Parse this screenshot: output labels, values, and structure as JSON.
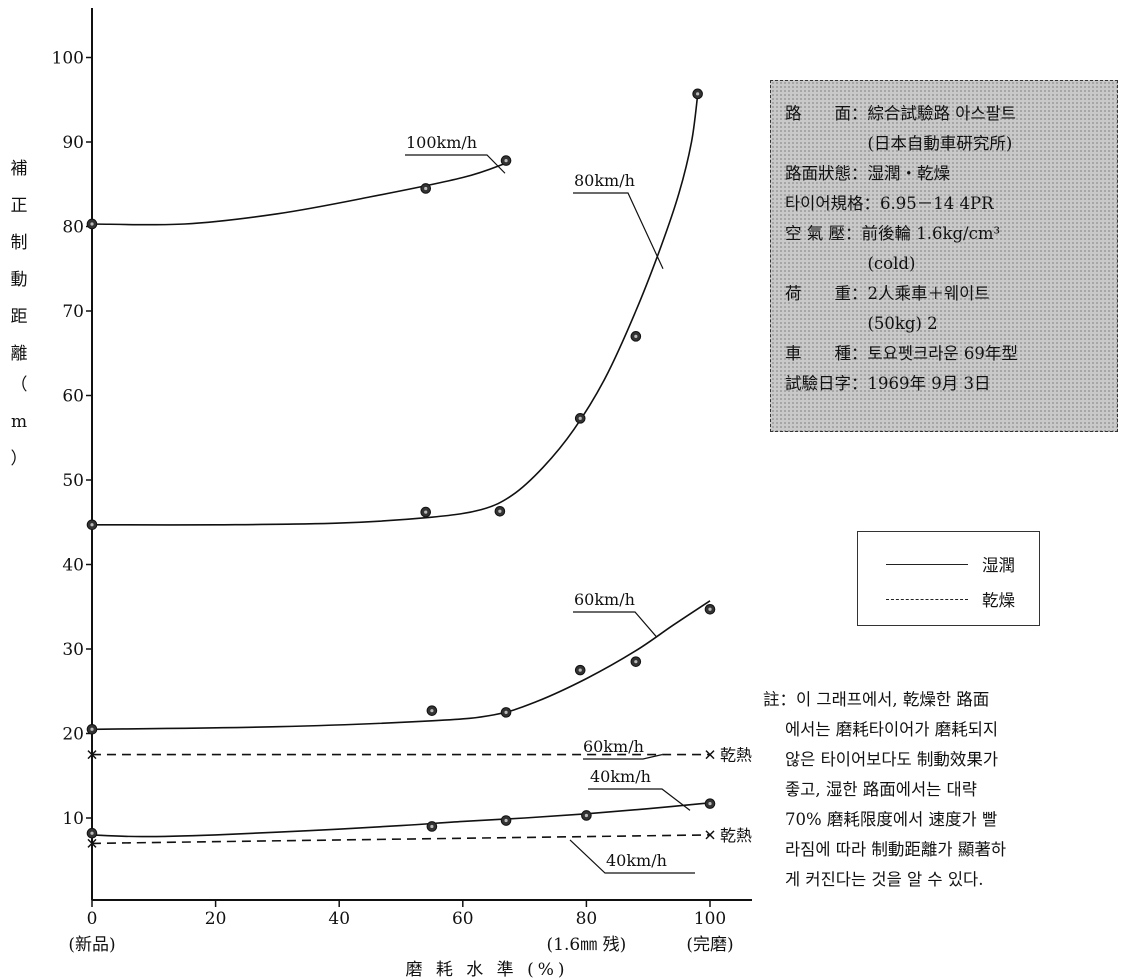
{
  "chart_data": {
    "type": "line",
    "ylabel_chars": [
      "補",
      "正",
      "制",
      "動",
      "距",
      "離",
      "（",
      "m",
      "）"
    ],
    "xlabel": "磨 耗 水 準 (%)",
    "xlim": [
      0,
      100
    ],
    "ylim": [
      0,
      105
    ],
    "x_ticks": [
      {
        "value": 0,
        "label": "0",
        "sublabel": "(新品)"
      },
      {
        "value": 20,
        "label": "20",
        "sublabel": ""
      },
      {
        "value": 40,
        "label": "40",
        "sublabel": ""
      },
      {
        "value": 60,
        "label": "60",
        "sublabel": ""
      },
      {
        "value": 80,
        "label": "80",
        "sublabel": "(1.6㎜ 残)"
      },
      {
        "value": 100,
        "label": "100",
        "sublabel": "(完磨)"
      }
    ],
    "y_ticks": [
      10,
      20,
      30,
      40,
      50,
      60,
      70,
      80,
      90,
      100
    ],
    "series": [
      {
        "key": "wet100",
        "name": "100km/h",
        "style": "solid",
        "points": [
          [
            0,
            80.3
          ],
          [
            54,
            84.5
          ],
          [
            67,
            87.8
          ]
        ],
        "curve": [
          [
            0,
            80.3
          ],
          [
            15,
            80.3
          ],
          [
            30,
            81.5
          ],
          [
            45,
            83.5
          ],
          [
            60,
            85.8
          ],
          [
            67,
            87.5
          ]
        ]
      },
      {
        "key": "wet80",
        "name": "80km/h",
        "style": "solid",
        "points": [
          [
            0,
            44.7
          ],
          [
            54,
            46.2
          ],
          [
            66,
            46.3
          ],
          [
            79,
            57.3
          ],
          [
            88,
            67.0
          ],
          [
            98,
            95.7
          ]
        ],
        "curve": [
          [
            0,
            44.7
          ],
          [
            20,
            44.7
          ],
          [
            40,
            44.9
          ],
          [
            55,
            45.6
          ],
          [
            63,
            46.5
          ],
          [
            68,
            48.2
          ],
          [
            73,
            51.5
          ],
          [
            78,
            56
          ],
          [
            83,
            62
          ],
          [
            88,
            70
          ],
          [
            92,
            77.5
          ],
          [
            95,
            84
          ],
          [
            97,
            90
          ],
          [
            98,
            95.5
          ]
        ]
      },
      {
        "key": "wet60",
        "name": "60km/h",
        "style": "solid",
        "points": [
          [
            0,
            20.5
          ],
          [
            55,
            22.7
          ],
          [
            67,
            22.5
          ],
          [
            79,
            27.5
          ],
          [
            88,
            28.5
          ],
          [
            100,
            34.7
          ]
        ],
        "curve": [
          [
            0,
            20.5
          ],
          [
            30,
            20.8
          ],
          [
            55,
            21.5
          ],
          [
            65,
            22.2
          ],
          [
            72,
            23.8
          ],
          [
            80,
            26.5
          ],
          [
            88,
            29.8
          ],
          [
            94,
            32.8
          ],
          [
            100,
            35.7
          ]
        ]
      },
      {
        "key": "wet40",
        "name": "40km/h",
        "style": "solid",
        "points": [
          [
            0,
            8.2
          ],
          [
            55,
            9.0
          ],
          [
            67,
            9.7
          ],
          [
            80,
            10.3
          ],
          [
            100,
            11.7
          ]
        ],
        "curve": [
          [
            0,
            8.0
          ],
          [
            8,
            7.8
          ],
          [
            20,
            8.0
          ],
          [
            35,
            8.5
          ],
          [
            50,
            9.1
          ],
          [
            60,
            9.6
          ],
          [
            70,
            10.0
          ],
          [
            80,
            10.5
          ],
          [
            90,
            11.1
          ],
          [
            100,
            11.8
          ]
        ]
      },
      {
        "key": "dry60",
        "name": "60km/h",
        "style": "dashed",
        "end_label": "乾熱",
        "points": [
          [
            0,
            17.5
          ],
          [
            100,
            17.5
          ]
        ],
        "curve": [
          [
            0,
            17.5
          ],
          [
            100,
            17.5
          ]
        ]
      },
      {
        "key": "dry40",
        "name": "40km/h",
        "style": "dashed",
        "end_label": "乾熱",
        "points": [
          [
            0,
            7.0
          ],
          [
            100,
            8.0
          ]
        ],
        "curve": [
          [
            0,
            7.0
          ],
          [
            100,
            8.0
          ]
        ]
      }
    ]
  },
  "info_box": {
    "rows": [
      "路　　面：綜合試驗路 아스팔트",
      "　　　　　(日本自動車硏究所)",
      "路面狀態：湿潤・乾燥",
      "타이어規格：6.95－14 4PR",
      "空 氣 壓：前後輪 1.6kg/cm³",
      "　　　　　(cold)",
      "荷　　重：2人乘車＋웨이트",
      "　　　　　(50kg) 2",
      "車　　種：토요펫크라운 69年型",
      "試驗日字：1969年 9月 3日"
    ]
  },
  "legend": {
    "wet": "湿潤",
    "dry": "乾燥"
  },
  "note": {
    "rows": [
      "註：이 그래프에서, 乾燥한 路面",
      "에서는 磨耗타이어가 磨耗되지",
      "않은 타이어보다도 制動效果가",
      "좋고, 湿한 路面에서는 대략",
      "70% 磨耗限度에서 速度가 빨",
      "라짐에 따라 制動距離가 顯著하",
      "게 커진다는 것을 알 수 있다."
    ]
  }
}
